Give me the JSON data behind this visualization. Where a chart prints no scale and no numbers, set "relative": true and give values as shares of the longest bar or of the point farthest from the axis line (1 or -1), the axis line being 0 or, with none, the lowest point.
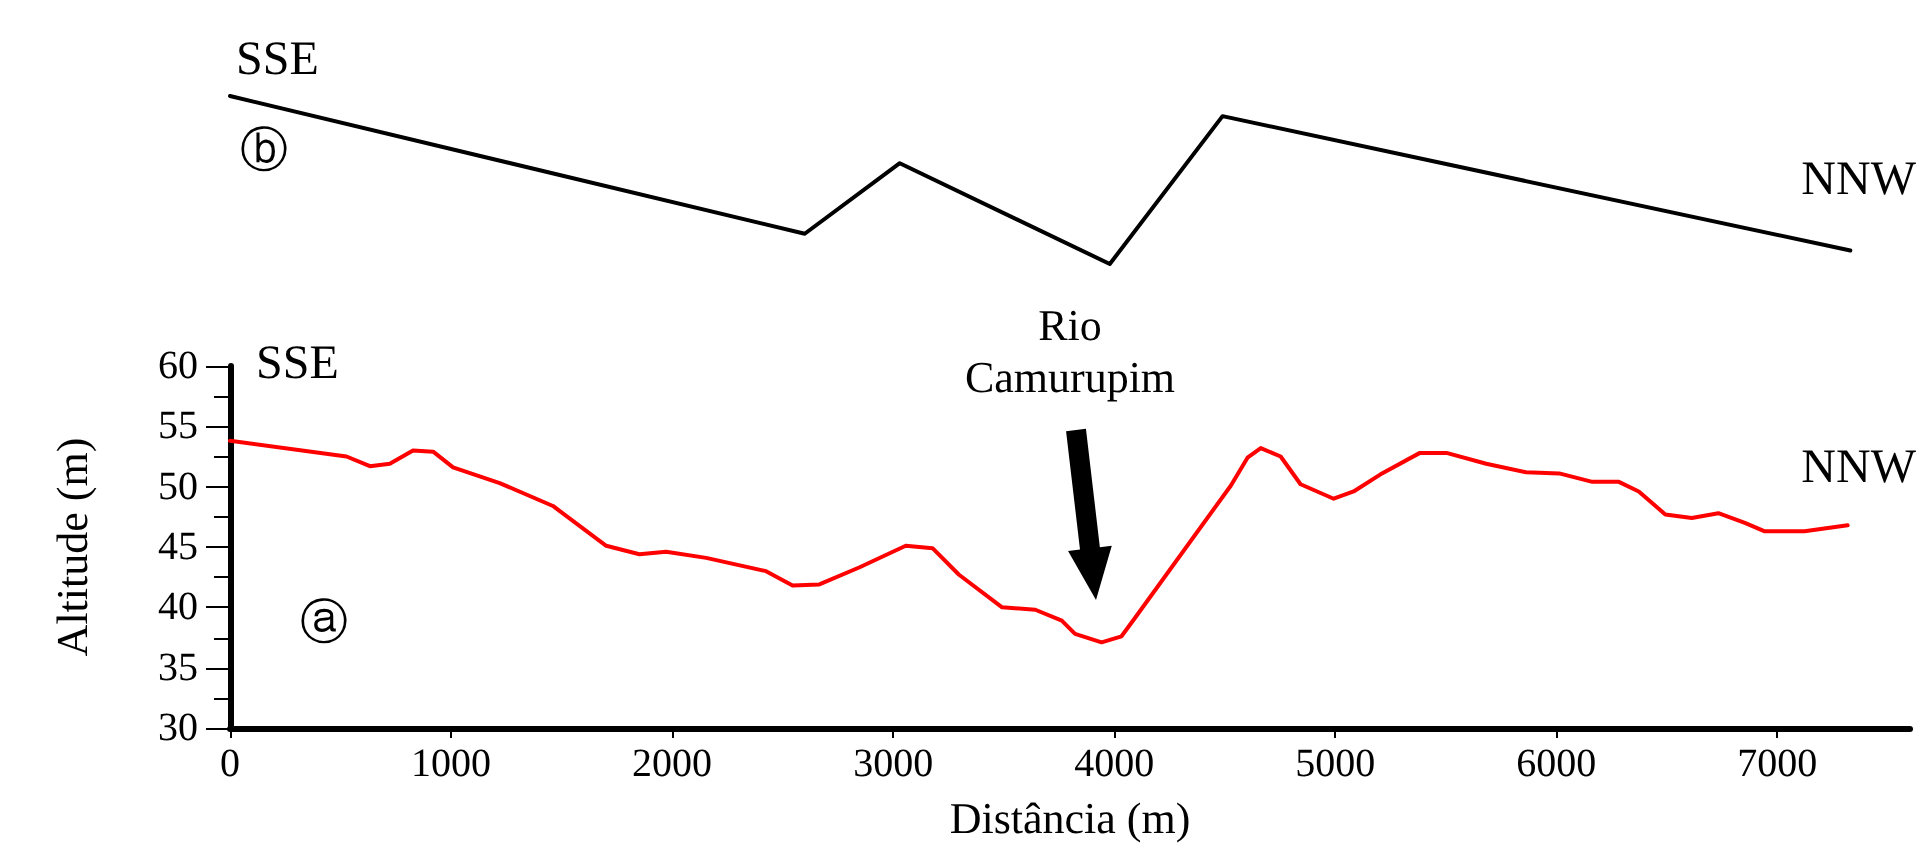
{
  "chart_data": [
    {
      "type": "line",
      "relative": true,
      "xlim": [
        0,
        7600
      ],
      "grid": false,
      "marker": "none",
      "line_style": "solid",
      "annotations": [
        "SSE",
        "ⓑ",
        "NNW"
      ],
      "series": [
        {
          "color": "#000000",
          "x": [
            0,
            2600,
            3030,
            3980,
            4490,
            7330
          ],
          "values": [
            1,
            0.18,
            0.6,
            0,
            0.88,
            0.08
          ]
        }
      ]
    },
    {
      "type": "line",
      "xlabel": "Distância (m)",
      "ylabel": "Altitude (m)",
      "xlim": [
        0,
        7600
      ],
      "xticks": [
        0,
        1000,
        2000,
        3000,
        4000,
        5000,
        6000,
        7000
      ],
      "ylim": [
        30,
        60
      ],
      "yticks": [
        30,
        35,
        40,
        45,
        50,
        55,
        60
      ],
      "grid": false,
      "marker": "none",
      "line_style": "solid",
      "annotations": [
        "SSE",
        "ⓐ",
        "NNW",
        "Rio Camurupim"
      ],
      "series": [
        {
          "color": "#ff0000",
          "x": [
            0,
            527,
            633,
            723,
            828,
            919,
            1009,
            1220,
            1461,
            1702,
            1852,
            1973,
            2154,
            2425,
            2545,
            2666,
            2846,
            3057,
            3178,
            3298,
            3493,
            3643,
            3763,
            3823,
            3943,
            4033,
            4093,
            4528,
            4603,
            4663,
            4753,
            4843,
            4993,
            5083,
            5203,
            5383,
            5503,
            5683,
            5863,
            6013,
            6163,
            6283,
            6373,
            6493,
            6613,
            6733,
            6853,
            6943,
            7123,
            7318
          ],
          "values": [
            53.8,
            52.5,
            51.7,
            51.9,
            53.0,
            52.9,
            51.6,
            50.3,
            48.4,
            45.1,
            44.4,
            44.6,
            44.1,
            43.0,
            41.8,
            41.9,
            43.3,
            45.1,
            44.9,
            42.7,
            40.0,
            39.8,
            38.9,
            37.8,
            37.1,
            37.6,
            39.1,
            50.1,
            52.4,
            53.2,
            52.5,
            50.2,
            49.0,
            49.6,
            51.0,
            52.8,
            52.8,
            51.9,
            51.2,
            51.1,
            50.4,
            50.4,
            49.6,
            47.7,
            47.4,
            47.8,
            47.0,
            46.3,
            46.3,
            46.8
          ]
        }
      ]
    }
  ]
}
